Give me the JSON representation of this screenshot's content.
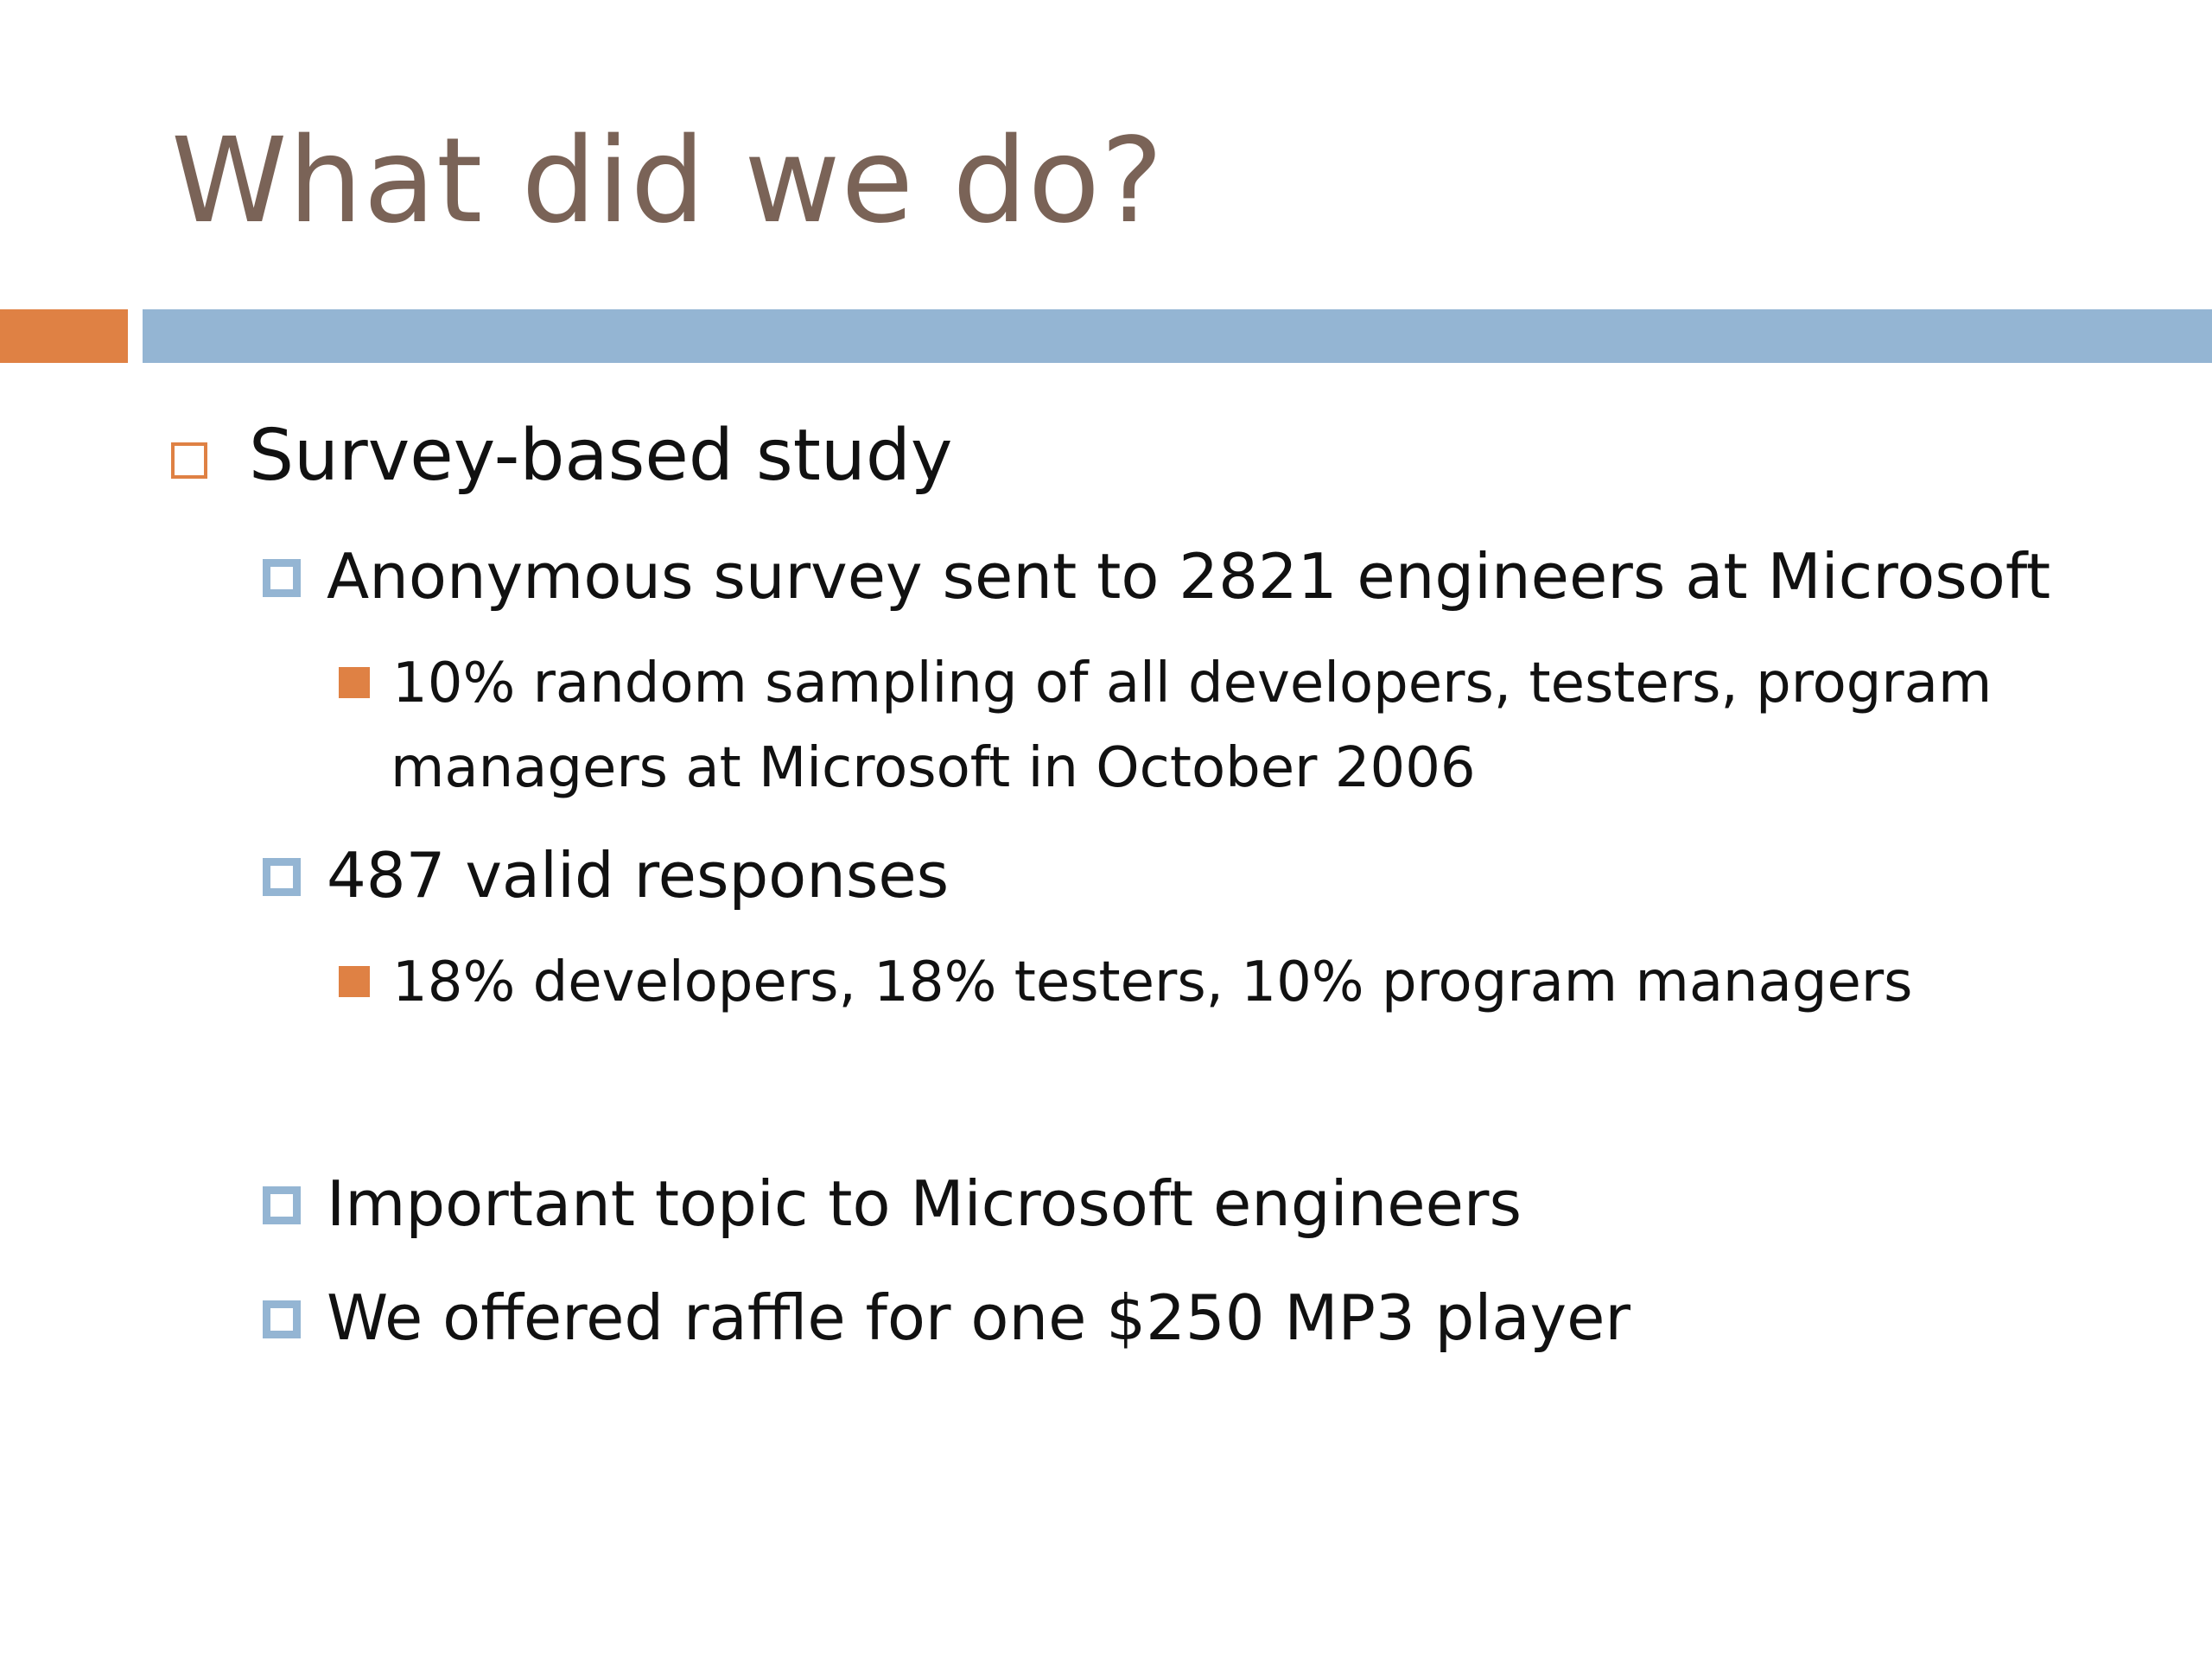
{
  "slide": {
    "title": "What did we do?",
    "bullets": {
      "b1": "Survey-based study",
      "b1_1": "Anonymous survey sent to 2821 engineers at Microsoft",
      "b1_1_1_line1": "10% random sampling of all developers, testers, program",
      "b1_1_1_line2": "managers at Microsoft in October 2006",
      "b1_2": "487 valid responses",
      "b1_2_1": "18% developers, 18% testers, 10% program managers",
      "b1_3": "Important topic to Microsoft engineers",
      "b1_4": "We offered raffle for one $250 MP3 player"
    },
    "colors": {
      "title": "#7a6357",
      "accent_orange": "#df8144",
      "accent_blue": "#94b5d3",
      "text": "#111111"
    }
  }
}
